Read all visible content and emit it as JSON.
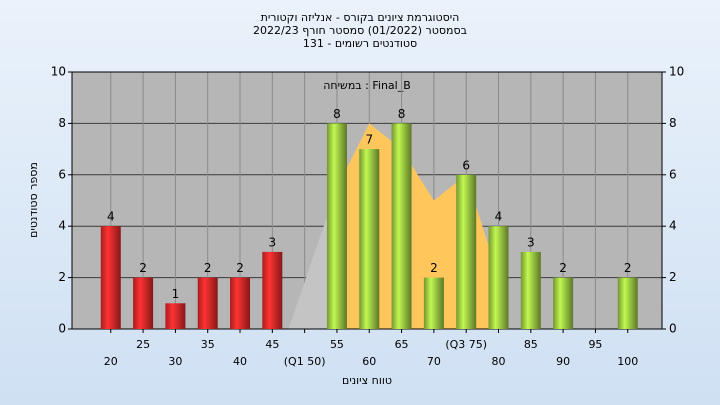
{
  "chart_data": {
    "type": "bar",
    "title": [
      "היסטוגרמת ציונים בקורס - אנליזה וקטורית",
      "בסמסטר (01/2022) סמסטר חורף 2022/23",
      "סטודנטים רשומים - 131"
    ],
    "annotation": "במשיחה : Final_B",
    "x_label": "טווח ציונים",
    "y_label": "מספר סטודנטים",
    "x": [
      20,
      25,
      30,
      35,
      40,
      45,
      50,
      55,
      60,
      65,
      70,
      75,
      80,
      85,
      90,
      95,
      100
    ],
    "values": [
      4,
      2,
      1,
      2,
      2,
      3,
      0,
      8,
      7,
      8,
      2,
      6,
      4,
      3,
      2,
      0,
      2
    ],
    "colors": [
      "#e02828",
      "#e02828",
      "#e02828",
      "#e02828",
      "#e02828",
      "#e02828",
      "#e02828",
      "#9ac641",
      "#9ac641",
      "#9ac641",
      "#9ac641",
      "#9ac641",
      "#9ac641",
      "#9ac641",
      "#9ac641",
      "#9ac641",
      "#9ac641"
    ],
    "areas": [
      {
        "color": "#c4c4c4",
        "x": [
          47.5,
          55
        ],
        "values": [
          0,
          5.5
        ]
      },
      {
        "color": "#ffc65c",
        "x": [
          55,
          60,
          65,
          70,
          75,
          80
        ],
        "values": [
          5.5,
          8,
          7,
          5,
          6,
          2
        ]
      }
    ],
    "xlim": [
      14,
      105.3
    ],
    "xticks": [
      20,
      25,
      30,
      35,
      40,
      45,
      {
        "value": 50,
        "label": "(Q1 50)"
      },
      55,
      60,
      65,
      70,
      {
        "value": 75,
        "label": "(Q3 75)"
      },
      80,
      85,
      90,
      95,
      100
    ],
    "ylim": [
      0,
      10
    ],
    "yticks": [
      0,
      2,
      4,
      6,
      8,
      10
    ],
    "grid": true
  }
}
